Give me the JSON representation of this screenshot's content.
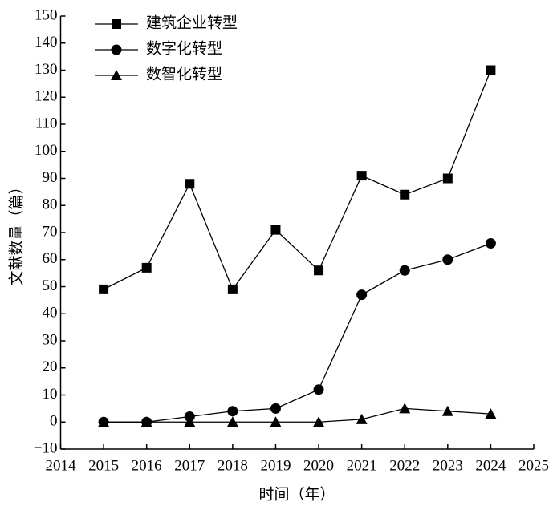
{
  "chart_data": {
    "type": "line",
    "x_label": "时间（年）",
    "y_label": "文献数量（篇）",
    "x": [
      2015,
      2016,
      2017,
      2018,
      2019,
      2020,
      2021,
      2022,
      2023,
      2024
    ],
    "series": [
      {
        "name": "建筑企业转型",
        "color": "#000000",
        "marker": "square",
        "values": [
          49,
          57,
          88,
          49,
          71,
          56,
          91,
          84,
          90,
          130
        ]
      },
      {
        "name": "数字化转型",
        "color": "#000000",
        "marker": "circle",
        "values": [
          0,
          0,
          2,
          4,
          5,
          12,
          47,
          56,
          60,
          66
        ]
      },
      {
        "name": "数智化转型",
        "color": "#000000",
        "marker": "triangle",
        "values": [
          0,
          0,
          0,
          0,
          0,
          0,
          1,
          5,
          4,
          3
        ]
      }
    ],
    "xlim": [
      2014,
      2025
    ],
    "xticks": [
      2014,
      2015,
      2016,
      2017,
      2018,
      2019,
      2020,
      2021,
      2022,
      2023,
      2024,
      2025
    ],
    "ylim": [
      -10,
      150
    ],
    "yticks": [
      {
        "value": -10,
        "label": "−10"
      },
      0,
      10,
      20,
      30,
      40,
      50,
      60,
      70,
      80,
      90,
      100,
      110,
      120,
      130,
      140,
      150
    ],
    "legend": "upper-left",
    "grid": false
  }
}
